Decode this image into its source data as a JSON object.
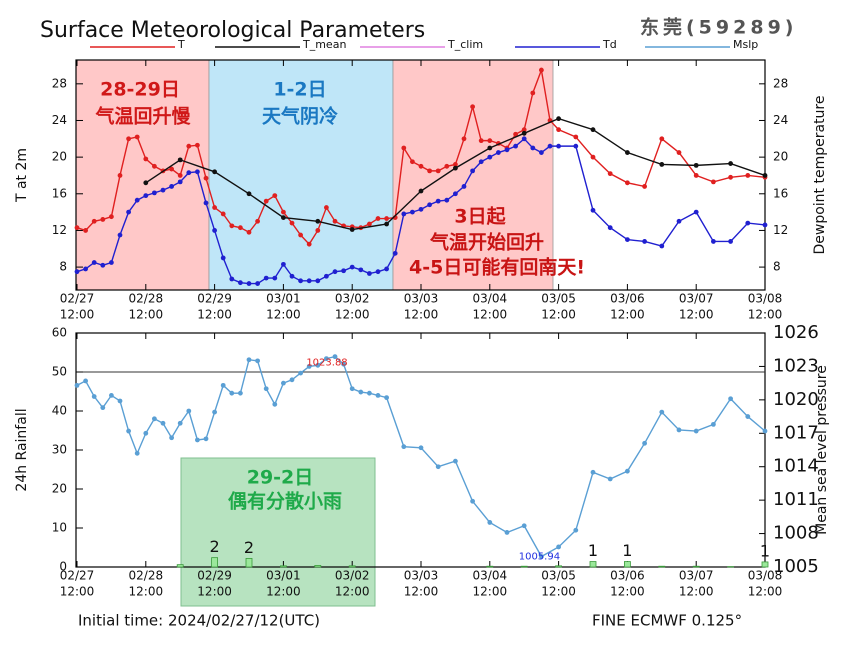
{
  "header": {
    "title": "Surface Meteorological Parameters",
    "station": "东莞(59289)"
  },
  "footer": {
    "initial_time": "Initial time: 2024/02/27/12(UTC)",
    "model": "FINE ECMWF 0.125°"
  },
  "annotations": [
    {
      "lines": [
        "28-29日",
        "气温回升慢"
      ]
    },
    {
      "lines": [
        "1-2日",
        "天气阴冷"
      ]
    },
    {
      "lines": [
        "3日起",
        "气温开始回升",
        "4-5日可能有回南天!"
      ]
    },
    {
      "lines": [
        "29-2日",
        "偶有分散小雨"
      ]
    }
  ],
  "chart_data": [
    {
      "type": "line",
      "ylabel": "T at 2m",
      "y2label": "Dewpoint temperature",
      "xlim": [
        "02/27 12:00",
        "03/08 12:00"
      ],
      "xticks": [
        {
          "value": "02/27 12:00",
          "label": [
            "02/27",
            "12:00"
          ]
        },
        {
          "value": "02/28 12:00",
          "label": [
            "02/28",
            "12:00"
          ]
        },
        {
          "value": "02/29 12:00",
          "label": [
            "02/29",
            "12:00"
          ]
        },
        {
          "value": "03/01 12:00",
          "label": [
            "03/01",
            "12:00"
          ]
        },
        {
          "value": "03/02 12:00",
          "label": [
            "03/02",
            "12:00"
          ]
        },
        {
          "value": "03/03 12:00",
          "label": [
            "03/03",
            "12:00"
          ]
        },
        {
          "value": "03/04 12:00",
          "label": [
            "03/04",
            "12:00"
          ]
        },
        {
          "value": "03/05 12:00",
          "label": [
            "03/05",
            "12:00"
          ]
        },
        {
          "value": "03/06 12:00",
          "label": [
            "03/06",
            "12:00"
          ]
        },
        {
          "value": "03/07 12:00",
          "label": [
            "03/07",
            "12:00"
          ]
        },
        {
          "value": "03/08 12:00",
          "label": [
            "03/08",
            "12:00"
          ]
        }
      ],
      "ylim": [
        5.5,
        30.6
      ],
      "yticks": [
        8,
        12,
        16,
        20,
        24,
        28
      ],
      "y2lim": [
        5.5,
        30.6
      ],
      "y2ticks": [
        8,
        12,
        16,
        20,
        24,
        28
      ],
      "series": [
        {
          "name": "T",
          "color": "#e02020",
          "x": [
            "02/27 12:00",
            "02/27 15:00",
            "02/27 18:00",
            "02/27 21:00",
            "02/28 00:00",
            "02/28 03:00",
            "02/28 06:00",
            "02/28 09:00",
            "02/28 12:00",
            "02/28 15:00",
            "02/28 18:00",
            "02/28 21:00",
            "02/29 00:00",
            "02/29 03:00",
            "02/29 06:00",
            "02/29 09:00",
            "02/29 12:00",
            "02/29 15:00",
            "02/29 18:00",
            "02/29 21:00",
            "03/01 00:00",
            "03/01 03:00",
            "03/01 06:00",
            "03/01 09:00",
            "03/01 12:00",
            "03/01 15:00",
            "03/01 18:00",
            "03/01 21:00",
            "03/02 00:00",
            "03/02 03:00",
            "03/02 06:00",
            "03/02 09:00",
            "03/02 12:00",
            "03/02 15:00",
            "03/02 18:00",
            "03/02 21:00",
            "03/03 00:00",
            "03/03 03:00",
            "03/03 06:00",
            "03/03 09:00",
            "03/03 12:00",
            "03/03 15:00",
            "03/03 18:00",
            "03/03 21:00",
            "03/04 00:00",
            "03/04 03:00",
            "03/04 06:00",
            "03/04 09:00",
            "03/04 12:00",
            "03/04 15:00",
            "03/04 18:00",
            "03/04 21:00",
            "03/05 00:00",
            "03/05 03:00",
            "03/05 06:00",
            "03/05 09:00",
            "03/05 12:00",
            "03/05 18:00",
            "03/06 00:00",
            "03/06 06:00",
            "03/06 12:00",
            "03/06 18:00",
            "03/07 00:00",
            "03/07 06:00",
            "03/07 12:00",
            "03/07 18:00",
            "03/08 00:00",
            "03/08 06:00",
            "03/08 12:00"
          ],
          "values": [
            12.3,
            12,
            13,
            13.2,
            13.5,
            18,
            22,
            22.2,
            19.8,
            19,
            18.5,
            18.7,
            18,
            21.2,
            21.3,
            17.7,
            14.5,
            13.8,
            12.5,
            12.3,
            11.8,
            13,
            15.2,
            15.8,
            14,
            12.8,
            11.5,
            10.5,
            12,
            14.5,
            13,
            12.5,
            12.4,
            12.3,
            12.7,
            13.3,
            13.3,
            13.4,
            21,
            19.5,
            19,
            18.5,
            18.5,
            19,
            19.2,
            22,
            25.5,
            21.8,
            21.8,
            21.5,
            21,
            22.5,
            23,
            27,
            29.5,
            24,
            23,
            22.2,
            20,
            18.2,
            17.2,
            16.8,
            22,
            20.5,
            18,
            17.3,
            17.8,
            18,
            17.8
          ]
        },
        {
          "name": "T_mean",
          "color": "#111111",
          "x": [
            "02/28 12:00",
            "02/29 00:00",
            "02/29 12:00",
            "03/01 00:00",
            "03/01 12:00",
            "03/02 00:00",
            "03/02 12:00",
            "03/03 00:00",
            "03/03 12:00",
            "03/04 00:00",
            "03/04 12:00",
            "03/05 00:00",
            "03/05 12:00",
            "03/06 00:00",
            "03/06 12:00",
            "03/07 00:00",
            "03/07 12:00",
            "03/08 00:00",
            "03/08 12:00"
          ],
          "values": [
            17.2,
            19.7,
            18.4,
            16,
            13.4,
            13,
            12.1,
            12.7,
            16.3,
            18.8,
            21,
            22.6,
            24.2,
            23,
            20.5,
            19.2,
            19.1,
            19.3,
            18
          ]
        },
        {
          "name": "T_clim",
          "color": "#e080e0"
        },
        {
          "name": "Td",
          "color": "#2020d0",
          "axis": "y2",
          "x": [
            "02/27 12:00",
            "02/27 15:00",
            "02/27 18:00",
            "02/27 21:00",
            "02/28 00:00",
            "02/28 03:00",
            "02/28 06:00",
            "02/28 09:00",
            "02/28 12:00",
            "02/28 15:00",
            "02/28 18:00",
            "02/28 21:00",
            "02/29 00:00",
            "02/29 03:00",
            "02/29 06:00",
            "02/29 09:00",
            "02/29 12:00",
            "02/29 15:00",
            "02/29 18:00",
            "02/29 21:00",
            "03/01 00:00",
            "03/01 03:00",
            "03/01 06:00",
            "03/01 09:00",
            "03/01 12:00",
            "03/01 15:00",
            "03/01 18:00",
            "03/01 21:00",
            "03/02 00:00",
            "03/02 03:00",
            "03/02 06:00",
            "03/02 09:00",
            "03/02 12:00",
            "03/02 15:00",
            "03/02 18:00",
            "03/02 21:00",
            "03/03 00:00",
            "03/03 03:00",
            "03/03 06:00",
            "03/03 09:00",
            "03/03 12:00",
            "03/03 15:00",
            "03/03 18:00",
            "03/03 21:00",
            "03/04 00:00",
            "03/04 03:00",
            "03/04 06:00",
            "03/04 09:00",
            "03/04 12:00",
            "03/04 15:00",
            "03/04 18:00",
            "03/04 21:00",
            "03/05 00:00",
            "03/05 03:00",
            "03/05 06:00",
            "03/05 09:00",
            "03/05 12:00",
            "03/05 18:00",
            "03/06 00:00",
            "03/06 06:00",
            "03/06 12:00",
            "03/06 18:00",
            "03/07 00:00",
            "03/07 06:00",
            "03/07 12:00",
            "03/07 18:00",
            "03/08 00:00",
            "03/08 06:00",
            "03/08 12:00"
          ],
          "values": [
            7.5,
            7.8,
            8.5,
            8.2,
            8.5,
            11.5,
            14,
            15.3,
            15.8,
            16.1,
            16.4,
            16.8,
            17.3,
            18.3,
            18.4,
            15,
            12,
            9,
            6.7,
            6.3,
            6.2,
            6.2,
            6.8,
            6.8,
            8.3,
            7,
            6.5,
            6.5,
            6.5,
            7,
            7.5,
            7.6,
            8,
            7.7,
            7.3,
            7.5,
            7.8,
            9.5,
            13.8,
            14,
            14.3,
            14.8,
            15.2,
            15.3,
            16,
            16.8,
            18.5,
            19.5,
            20,
            20.5,
            20.8,
            21.2,
            22,
            21,
            20.5,
            21.2,
            21.2,
            21.2,
            14.2,
            12.3,
            11,
            10.8,
            10.3,
            13,
            14,
            10.8,
            10.8,
            12.8,
            12.6
          ]
        }
      ]
    },
    {
      "type": "combo",
      "ylabel": "24h Rainfall",
      "y2label": "Mean sea level pressure",
      "xlim": [
        "02/27 12:00",
        "03/08 12:00"
      ],
      "xticks": [
        {
          "value": "02/27 12:00",
          "label": [
            "02/27",
            "12:00"
          ]
        },
        {
          "value": "02/28 12:00",
          "label": [
            "02/28",
            "12:00"
          ]
        },
        {
          "value": "02/29 12:00",
          "label": [
            "02/29",
            "12:00"
          ]
        },
        {
          "value": "03/01 12:00",
          "label": [
            "03/01",
            "12:00"
          ]
        },
        {
          "value": "03/02 12:00",
          "label": [
            "03/02",
            "12:00"
          ]
        },
        {
          "value": "03/03 12:00",
          "label": [
            "03/03",
            "12:00"
          ]
        },
        {
          "value": "03/04 12:00",
          "label": [
            "03/04",
            "12:00"
          ]
        },
        {
          "value": "03/05 12:00",
          "label": [
            "03/05",
            "12:00"
          ]
        },
        {
          "value": "03/06 12:00",
          "label": [
            "03/06",
            "12:00"
          ]
        },
        {
          "value": "03/07 12:00",
          "label": [
            "03/07",
            "12:00"
          ]
        },
        {
          "value": "03/08 12:00",
          "label": [
            "03/08",
            "12:00"
          ]
        }
      ],
      "ylim": [
        0,
        60
      ],
      "yticks": [
        0,
        10,
        20,
        30,
        40,
        50,
        60
      ],
      "y2lim": [
        1005,
        1026
      ],
      "y2ticks": [
        1005,
        1008,
        1011,
        1014,
        1017,
        1020,
        1023,
        1026
      ],
      "bars": {
        "color": "#9be89b",
        "x": [
          "02/29 00:00",
          "02/29 12:00",
          "03/01 00:00",
          "03/01 12:00",
          "03/02 00:00",
          "03/02 12:00",
          "03/03 00:00",
          "03/03 12:00",
          "03/04 00:00",
          "03/04 12:00",
          "03/05 00:00",
          "03/05 12:00",
          "03/06 00:00",
          "03/06 12:00",
          "03/07 00:00",
          "03/07 12:00",
          "03/08 00:00",
          "03/08 12:00"
        ],
        "values": [
          0.6,
          2.4,
          2.2,
          0.3,
          0.4,
          0.3,
          0,
          0,
          0,
          0.2,
          0.2,
          0.3,
          1.4,
          1.4,
          0.2,
          0.2,
          0.1,
          1.3
        ],
        "value_labels": [
          null,
          "2",
          "2",
          null,
          null,
          null,
          null,
          null,
          null,
          null,
          null,
          null,
          "1",
          "1",
          null,
          null,
          null,
          "1"
        ]
      },
      "series": [
        {
          "name": "Mslp",
          "color": "#5a9fd4",
          "axis": "y2",
          "x": [
            "02/27 12:00",
            "02/27 15:00",
            "02/27 18:00",
            "02/27 21:00",
            "02/28 00:00",
            "02/28 03:00",
            "02/28 06:00",
            "02/28 09:00",
            "02/28 12:00",
            "02/28 15:00",
            "02/28 18:00",
            "02/28 21:00",
            "02/29 00:00",
            "02/29 03:00",
            "02/29 06:00",
            "02/29 09:00",
            "02/29 12:00",
            "02/29 15:00",
            "02/29 18:00",
            "02/29 21:00",
            "03/01 00:00",
            "03/01 03:00",
            "03/01 06:00",
            "03/01 09:00",
            "03/01 12:00",
            "03/01 15:00",
            "03/01 18:00",
            "03/01 21:00",
            "03/02 00:00",
            "03/02 03:00",
            "03/02 06:00",
            "03/02 09:00",
            "03/02 12:00",
            "03/02 15:00",
            "03/02 18:00",
            "03/02 21:00",
            "03/03 00:00",
            "03/03 06:00",
            "03/03 12:00",
            "03/03 18:00",
            "03/04 00:00",
            "03/04 06:00",
            "03/04 12:00",
            "03/04 18:00",
            "03/05 00:00",
            "03/05 06:00",
            "03/05 12:00",
            "03/05 18:00",
            "03/06 00:00",
            "03/06 06:00",
            "03/06 12:00",
            "03/06 18:00",
            "03/07 00:00",
            "03/07 06:00",
            "03/07 12:00",
            "03/07 18:00",
            "03/08 00:00",
            "03/08 06:00",
            "03/08 12:00"
          ],
          "values": [
            1021.3,
            1021.7,
            1020.3,
            1019.3,
            1020.4,
            1019.9,
            1017.2,
            1015.2,
            1017,
            1018.3,
            1017.9,
            1016.6,
            1017.9,
            1019,
            1016.4,
            1016.5,
            1018.9,
            1021.3,
            1020.6,
            1020.6,
            1023.6,
            1023.5,
            1021,
            1019.6,
            1021.5,
            1021.8,
            1022.4,
            1023,
            1023.1,
            1023.7,
            1023.88,
            1023.2,
            1021,
            1020.7,
            1020.6,
            1020.4,
            1020.2,
            1015.8,
            1015.7,
            1014,
            1014.5,
            1010.9,
            1009,
            1008.1,
            1008.7,
            1005.94,
            1006.8,
            1008.3,
            1013.5,
            1012.9,
            1013.6,
            1016.1,
            1018.9,
            1017.3,
            1017.2,
            1017.8,
            1020.1,
            1018.5,
            1017.2
          ]
        }
      ],
      "annotations": [
        {
          "text": "1023.88",
          "color": "#e02020"
        },
        {
          "text": "1005.94",
          "color": "#2030e0"
        }
      ]
    }
  ]
}
